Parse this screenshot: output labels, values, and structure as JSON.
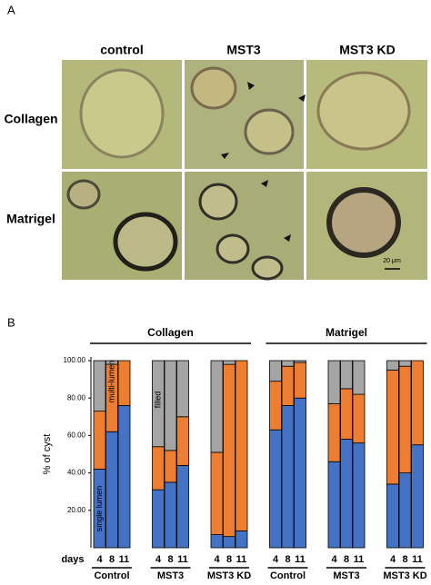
{
  "panel_labels": [
    "A",
    "B"
  ],
  "panel_a": {
    "columns": [
      "control",
      "MST3",
      "MST3 KD"
    ],
    "rows": [
      "Collagen",
      "Matrigel"
    ],
    "scale_bar": "20 μm"
  },
  "chart_data": {
    "type": "stacked-bar",
    "y_label": "% of cyst",
    "x_label": "days",
    "panels": [
      "Collagen",
      "Matrigel"
    ],
    "groups": [
      "Control",
      "MST3",
      "MST3 KD",
      "Control",
      "MST3",
      "MST3 KD"
    ],
    "categories": [
      "4",
      "8",
      "11",
      "4",
      "8",
      "11",
      "4",
      "8",
      "11",
      "4",
      "8",
      "11",
      "4",
      "8",
      "11",
      "4",
      "8",
      "11"
    ],
    "series": [
      {
        "name": "single lumen",
        "color": "#4472c4",
        "values": [
          42,
          62,
          76,
          31,
          35,
          44,
          7,
          6,
          9,
          63,
          76,
          80,
          46,
          58,
          56,
          34,
          40,
          55
        ]
      },
      {
        "name": "multi-lumen",
        "color": "#ed7d31",
        "values": [
          31,
          36,
          24,
          23,
          17,
          26,
          44,
          92,
          91,
          26,
          21,
          19,
          31,
          27,
          26,
          61,
          57,
          45
        ]
      },
      {
        "name": "filled",
        "color": "#a5a5a5",
        "values": [
          27,
          2,
          0,
          46,
          48,
          30,
          49,
          2,
          0,
          11,
          3,
          1,
          23,
          15,
          18,
          5,
          3,
          0
        ]
      }
    ],
    "ylim": [
      0,
      100
    ],
    "yticks": [
      {
        "value": 20,
        "label": "20.00"
      },
      {
        "value": 40,
        "label": "40.00"
      },
      {
        "value": 60,
        "label": "60.00"
      },
      {
        "value": 80,
        "label": "80.00"
      },
      {
        "value": 100,
        "label": "100.00"
      }
    ]
  }
}
